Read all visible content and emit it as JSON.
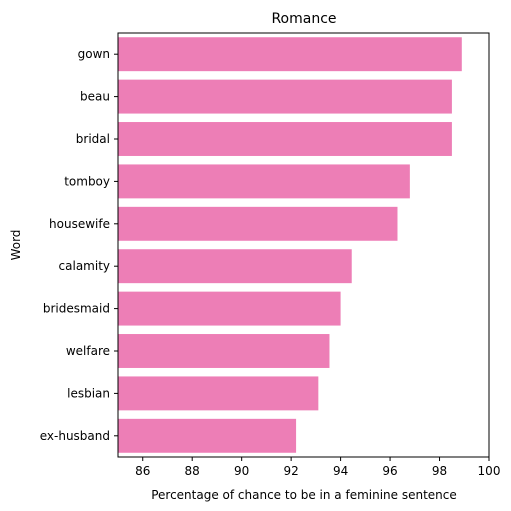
{
  "chart_data": {
    "type": "bar",
    "orientation": "horizontal",
    "title": "Romance",
    "xlabel": "Percentage of chance to be in a feminine sentence",
    "ylabel": "Word",
    "xlim": [
      85,
      100
    ],
    "xticks": [
      "86",
      "88",
      "90",
      "92",
      "94",
      "96",
      "98",
      "100"
    ],
    "categories": [
      "gown",
      "beau",
      "bridal",
      "tomboy",
      "housewife",
      "calamity",
      "bridesmaid",
      "welfare",
      "lesbian",
      "ex-husband"
    ],
    "values": [
      98.9,
      98.5,
      98.5,
      96.8,
      96.3,
      94.45,
      94.0,
      93.55,
      93.1,
      92.2
    ],
    "bar_color": "#ed7eb6",
    "grid": false,
    "legend": "none"
  }
}
